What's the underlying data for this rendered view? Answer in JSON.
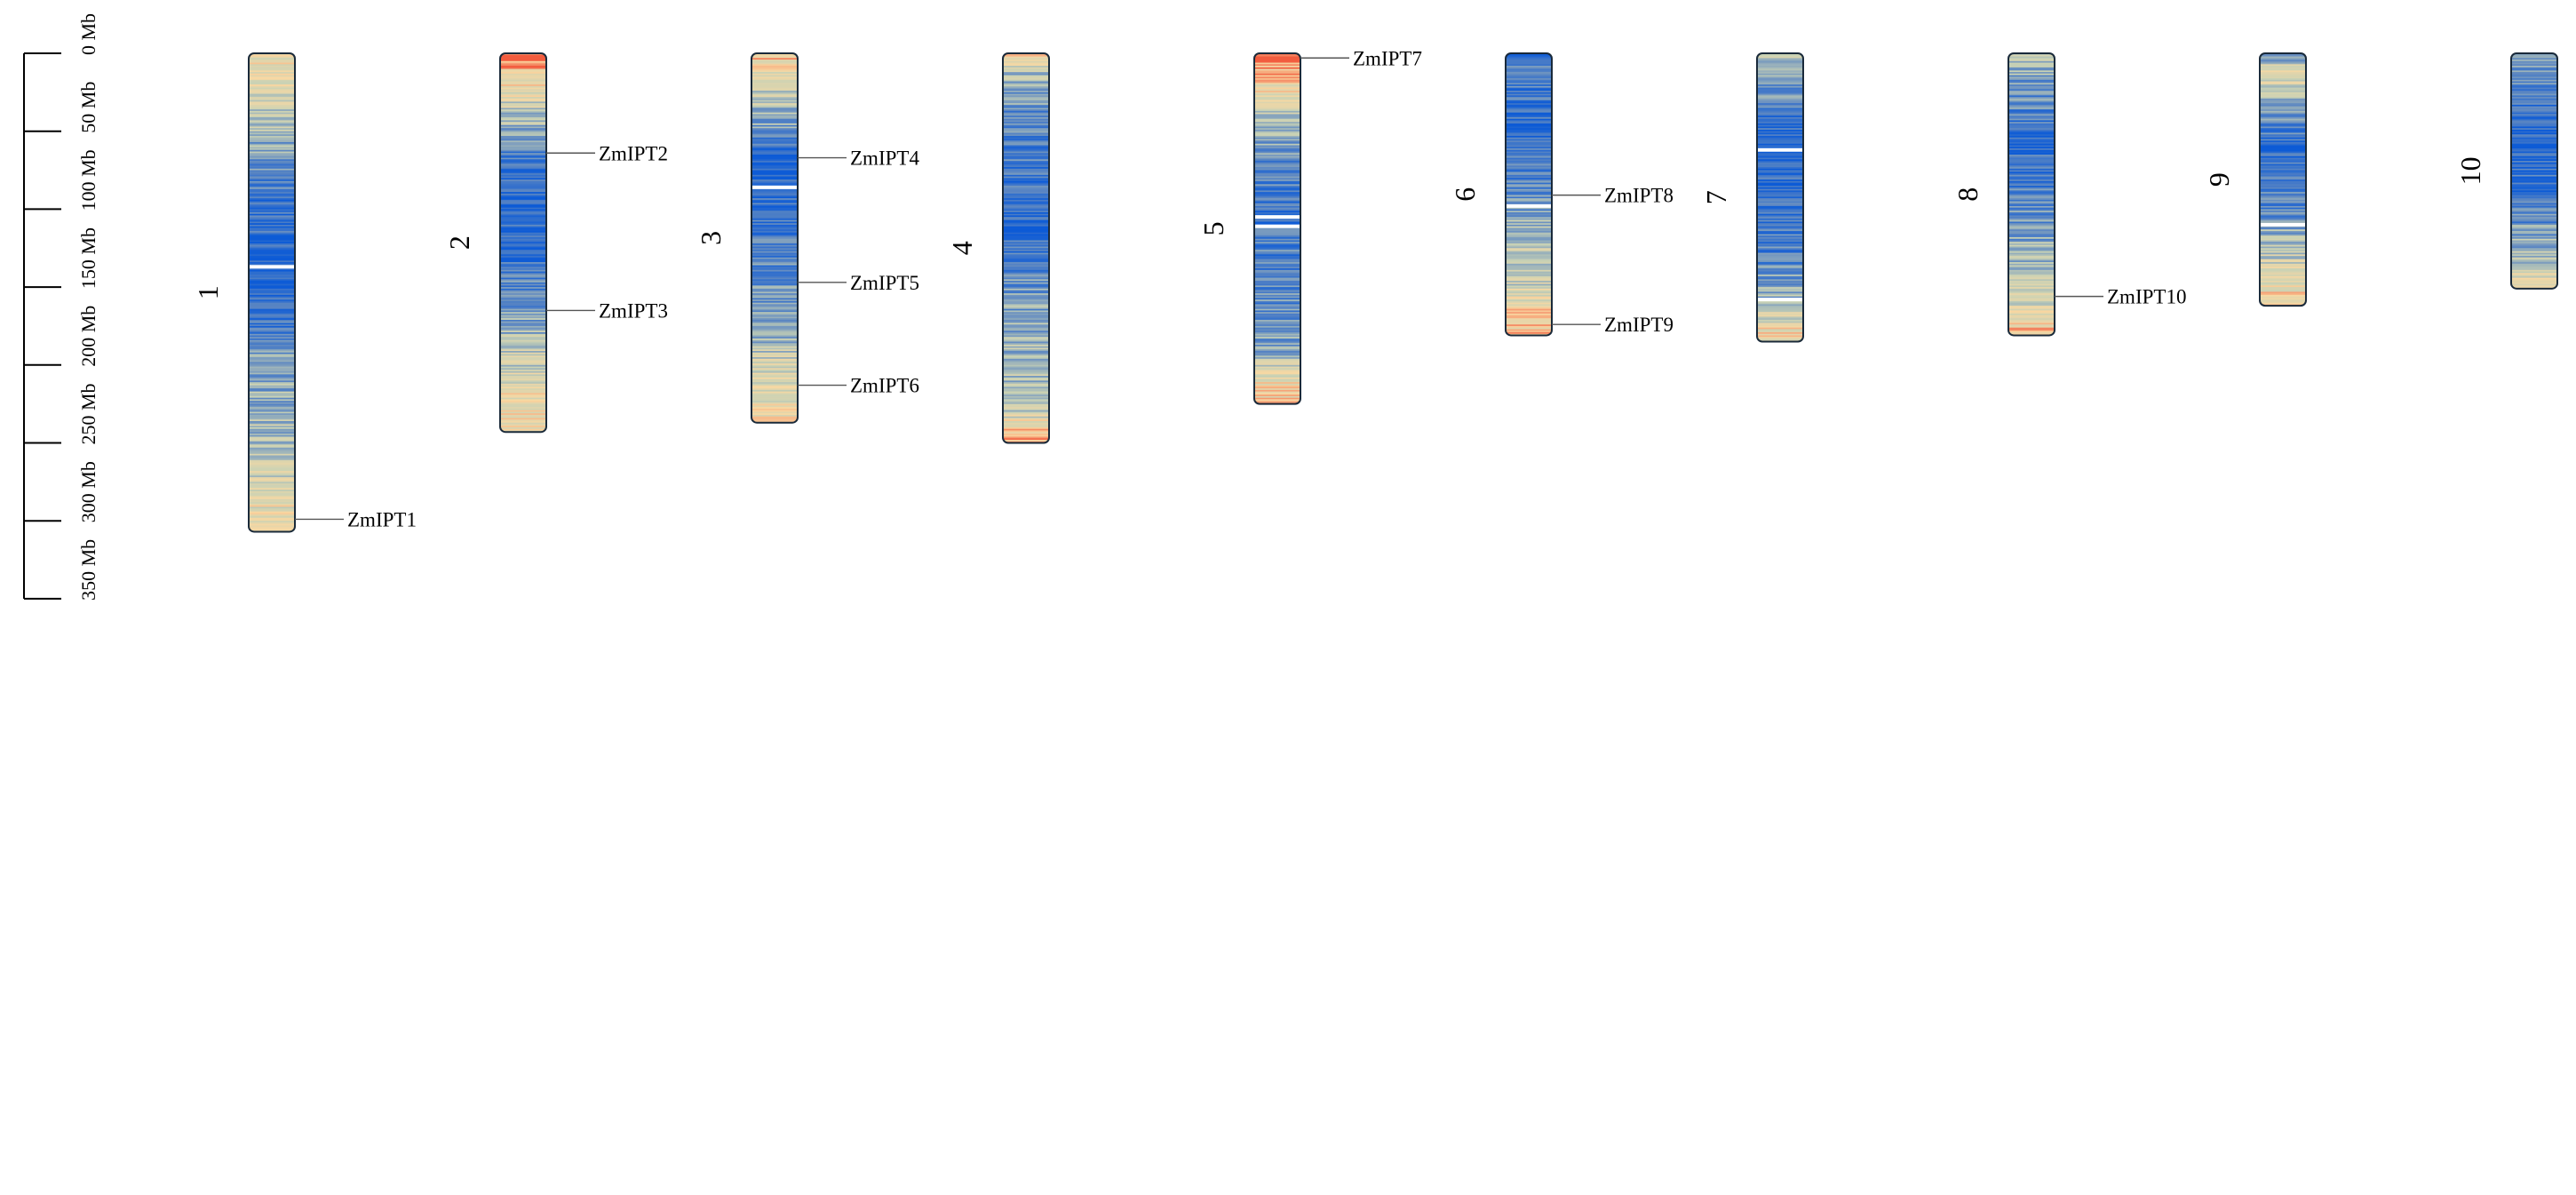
{
  "scale": {
    "unit": "Mb",
    "max": 350,
    "ticks": [
      {
        "value": 0,
        "label": "0 Mb"
      },
      {
        "value": 50,
        "label": "50 Mb"
      },
      {
        "value": 100,
        "label": "100 Mb"
      },
      {
        "value": 150,
        "label": "150 Mb"
      },
      {
        "value": 200,
        "label": "200 Mb"
      },
      {
        "value": 250,
        "label": "250 Mb"
      },
      {
        "value": 300,
        "label": "300 Mb"
      },
      {
        "value": 350,
        "label": "350 Mb"
      }
    ]
  },
  "chromosomes": [
    {
      "name": "1",
      "length": 307,
      "genes": [
        {
          "name": "ZmIPT1",
          "position": 299
        }
      ],
      "density": [
        [
          0,
          0.3
        ],
        [
          15,
          0.35
        ],
        [
          40,
          0.5
        ],
        [
          70,
          0.75
        ],
        [
          100,
          0.85
        ],
        [
          135,
          0.95
        ],
        [
          160,
          0.9
        ],
        [
          200,
          0.65
        ],
        [
          250,
          0.55
        ],
        [
          285,
          0.4
        ],
        [
          307,
          0.25
        ]
      ],
      "gaps": [
        137
      ]
    },
    {
      "name": "2",
      "length": 243,
      "genes": [
        {
          "name": "ZmIPT2",
          "position": 64
        },
        {
          "name": "ZmIPT3",
          "position": 165
        }
      ],
      "density": [
        [
          0,
          0.05
        ],
        [
          15,
          0.25
        ],
        [
          40,
          0.55
        ],
        [
          70,
          0.88
        ],
        [
          100,
          0.92
        ],
        [
          140,
          0.82
        ],
        [
          180,
          0.6
        ],
        [
          220,
          0.35
        ],
        [
          243,
          0.3
        ]
      ],
      "gaps": []
    },
    {
      "name": "3",
      "length": 237,
      "genes": [
        {
          "name": "ZmIPT4",
          "position": 67
        },
        {
          "name": "ZmIPT5",
          "position": 147
        },
        {
          "name": "ZmIPT6",
          "position": 213
        }
      ],
      "density": [
        [
          0,
          0.2
        ],
        [
          15,
          0.4
        ],
        [
          45,
          0.65
        ],
        [
          70,
          0.95
        ],
        [
          100,
          0.85
        ],
        [
          140,
          0.75
        ],
        [
          170,
          0.7
        ],
        [
          200,
          0.45
        ],
        [
          237,
          0.35
        ]
      ],
      "gaps": [
        86
      ]
    },
    {
      "name": "4",
      "length": 250,
      "genes": [],
      "density": [
        [
          0,
          0.15
        ],
        [
          10,
          0.55
        ],
        [
          40,
          0.75
        ],
        [
          80,
          0.85
        ],
        [
          110,
          0.92
        ],
        [
          150,
          0.7
        ],
        [
          190,
          0.6
        ],
        [
          230,
          0.5
        ],
        [
          242,
          0.2
        ],
        [
          250,
          0.1
        ]
      ],
      "gaps": []
    },
    {
      "name": "5",
      "length": 225,
      "genes": [
        {
          "name": "ZmIPT7",
          "position": 3
        }
      ],
      "density": [
        [
          0,
          0.0
        ],
        [
          8,
          0.15
        ],
        [
          30,
          0.4
        ],
        [
          60,
          0.7
        ],
        [
          100,
          0.85
        ],
        [
          150,
          0.78
        ],
        [
          190,
          0.65
        ],
        [
          210,
          0.35
        ],
        [
          225,
          0.25
        ]
      ],
      "gaps": [
        105,
        111
      ]
    },
    {
      "name": "6",
      "length": 181,
      "genes": [
        {
          "name": "ZmIPT8",
          "position": 91
        },
        {
          "name": "ZmIPT9",
          "position": 174
        }
      ],
      "density": [
        [
          0,
          0.85
        ],
        [
          20,
          0.82
        ],
        [
          50,
          0.88
        ],
        [
          90,
          0.75
        ],
        [
          120,
          0.55
        ],
        [
          150,
          0.45
        ],
        [
          168,
          0.25
        ],
        [
          181,
          0.2
        ]
      ],
      "gaps": [
        98
      ]
    },
    {
      "name": "7",
      "length": 185,
      "genes": [],
      "density": [
        [
          0,
          0.45
        ],
        [
          20,
          0.7
        ],
        [
          55,
          0.95
        ],
        [
          90,
          0.88
        ],
        [
          130,
          0.8
        ],
        [
          160,
          0.55
        ],
        [
          175,
          0.35
        ],
        [
          185,
          0.25
        ]
      ],
      "gaps": [
        62,
        158
      ]
    },
    {
      "name": "8",
      "length": 181,
      "genes": [
        {
          "name": "ZmIPT10",
          "position": 156
        }
      ],
      "density": [
        [
          0,
          0.55
        ],
        [
          20,
          0.7
        ],
        [
          50,
          0.88
        ],
        [
          90,
          0.8
        ],
        [
          130,
          0.6
        ],
        [
          155,
          0.5
        ],
        [
          168,
          0.3
        ],
        [
          181,
          0.2
        ]
      ],
      "gaps": []
    },
    {
      "name": "9",
      "length": 162,
      "genes": [],
      "density": [
        [
          0,
          0.75
        ],
        [
          10,
          0.35
        ],
        [
          30,
          0.6
        ],
        [
          60,
          0.92
        ],
        [
          100,
          0.75
        ],
        [
          130,
          0.5
        ],
        [
          150,
          0.35
        ],
        [
          162,
          0.2
        ]
      ],
      "gaps": [
        110
      ]
    },
    {
      "name": "10",
      "length": 151,
      "genes": [],
      "density": [
        [
          0,
          0.6
        ],
        [
          20,
          0.8
        ],
        [
          50,
          0.92
        ],
        [
          90,
          0.85
        ],
        [
          120,
          0.65
        ],
        [
          140,
          0.45
        ],
        [
          151,
          0.2
        ]
      ],
      "gaps": []
    }
  ],
  "colors": {
    "low_density": "#f25c3f",
    "mid_low_density": "#f9d8a2",
    "mid_density": "#c9d2b5",
    "mid_high_density": "#5b86c2",
    "high_density": "#0d5bd6",
    "gap": "#ffffff",
    "outline": "#1a2a3a"
  }
}
